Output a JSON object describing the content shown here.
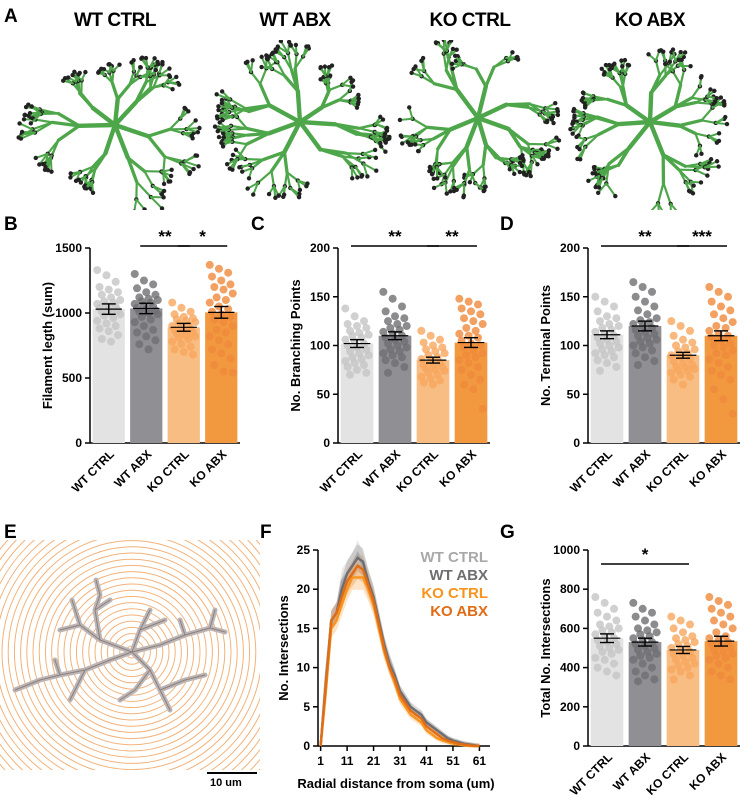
{
  "panels": {
    "A": "A",
    "B": "B",
    "C": "C",
    "D": "D",
    "E": "E",
    "F": "F",
    "G": "G"
  },
  "cell_titles": [
    "WT CTRL",
    "WT ABX",
    "KO CTRL",
    "KO ABX"
  ],
  "scale_bar_label": "10 um",
  "colors": {
    "wt_ctrl": "#e3e3e3",
    "wt_abx": "#8f8f94",
    "ko_ctrl": "#f8bd82",
    "ko_abx": "#f29940",
    "cell_green": "#4ea64a",
    "ring_orange": "#f3b27a"
  },
  "chart_data": [
    {
      "id": "B",
      "type": "bar",
      "categories": [
        "WT CTRL",
        "WT ABX",
        "KO CTRL",
        "KO ABX"
      ],
      "values": [
        1030,
        1035,
        890,
        1005
      ],
      "errors": [
        40,
        40,
        30,
        45
      ],
      "ylabel": "Filament legth (sum)",
      "ylim": [
        0,
        1500
      ],
      "yticks": [
        "0",
        "500",
        "1000",
        "1500"
      ],
      "significance": [
        {
          "from": 0,
          "to": 2,
          "label": "**"
        },
        {
          "from": 1,
          "to": 2,
          "label": "**"
        },
        {
          "from": 2,
          "to": 3,
          "label": "*"
        }
      ],
      "points": [
        [
          1330,
          1290,
          1240,
          1200,
          1180,
          1160,
          1140,
          1120,
          1100,
          1090,
          1080,
          1070,
          1060,
          1050,
          1040,
          1030,
          1020,
          1010,
          1000,
          990,
          980,
          960,
          940,
          920,
          900,
          880,
          860,
          830,
          800,
          780
        ],
        [
          1300,
          1250,
          1220,
          1190,
          1160,
          1140,
          1120,
          1110,
          1100,
          1090,
          1080,
          1070,
          1060,
          1050,
          1040,
          1030,
          1020,
          1010,
          1000,
          990,
          970,
          950,
          930,
          900,
          870,
          850,
          820,
          790,
          760,
          720
        ],
        [
          1080,
          1040,
          1010,
          990,
          970,
          960,
          950,
          940,
          930,
          920,
          910,
          900,
          890,
          880,
          870,
          860,
          850,
          840,
          830,
          820,
          810,
          800,
          780,
          760,
          740,
          720,
          700,
          680
        ],
        [
          1370,
          1340,
          1310,
          1280,
          1250,
          1220,
          1200,
          1180,
          1150,
          1120,
          1100,
          1080,
          1050,
          1030,
          1010,
          990,
          970,
          950,
          930,
          900,
          870,
          850,
          820,
          790,
          760,
          720,
          690,
          650,
          600,
          550,
          540
        ]
      ]
    },
    {
      "id": "C",
      "type": "bar",
      "categories": [
        "WT CTRL",
        "WT ABX",
        "KO CTRL",
        "KO ABX"
      ],
      "values": [
        102,
        110,
        85,
        103
      ],
      "errors": [
        4,
        4,
        3,
        5
      ],
      "ylabel": "No. Branching Points",
      "ylim": [
        0,
        200
      ],
      "yticks": [
        "0",
        "50",
        "100",
        "150",
        "200"
      ],
      "significance": [
        {
          "from": 0,
          "to": 2,
          "label": "**"
        },
        {
          "from": 2,
          "to": 3,
          "label": "**"
        }
      ],
      "points": [
        [
          138,
          130,
          125,
          122,
          120,
          118,
          115,
          113,
          111,
          110,
          108,
          106,
          104,
          102,
          100,
          98,
          96,
          94,
          92,
          90,
          88,
          86,
          84,
          82,
          80,
          78,
          75,
          72,
          70
        ],
        [
          155,
          148,
          140,
          135,
          130,
          128,
          125,
          122,
          120,
          118,
          116,
          114,
          112,
          110,
          108,
          106,
          104,
          102,
          100,
          98,
          96,
          94,
          92,
          90,
          88,
          85,
          82,
          78,
          72
        ],
        [
          115,
          110,
          106,
          103,
          100,
          98,
          96,
          94,
          92,
          90,
          88,
          86,
          84,
          82,
          80,
          79,
          78,
          76,
          75,
          74,
          72,
          70,
          68,
          66,
          64,
          62,
          60
        ],
        [
          148,
          145,
          142,
          138,
          135,
          132,
          128,
          125,
          122,
          118,
          115,
          112,
          110,
          108,
          105,
          102,
          100,
          98,
          95,
          92,
          90,
          88,
          85,
          82,
          78,
          75,
          70,
          65,
          60,
          55,
          35
        ]
      ]
    },
    {
      "id": "D",
      "type": "bar",
      "categories": [
        "WT CTRL",
        "WT ABX",
        "KO CTRL",
        "KO ABX"
      ],
      "values": [
        111,
        120,
        90,
        110
      ],
      "errors": [
        4,
        5,
        3,
        5
      ],
      "ylabel": "No. Terminal Points",
      "ylim": [
        0,
        200
      ],
      "yticks": [
        "0",
        "50",
        "100",
        "150",
        "200"
      ],
      "significance": [
        {
          "from": 0,
          "to": 2,
          "label": "**"
        },
        {
          "from": 2,
          "to": 3,
          "label": "***"
        }
      ],
      "points": [
        [
          150,
          145,
          140,
          135,
          130,
          128,
          125,
          122,
          120,
          118,
          116,
          114,
          112,
          110,
          108,
          106,
          104,
          102,
          100,
          98,
          96,
          94,
          92,
          90,
          88,
          85,
          82,
          78,
          74
        ],
        [
          165,
          160,
          155,
          150,
          145,
          140,
          136,
          132,
          128,
          126,
          124,
          122,
          120,
          118,
          116,
          114,
          112,
          110,
          108,
          106,
          104,
          102,
          100,
          98,
          95,
          92,
          88,
          84,
          80
        ],
        [
          125,
          120,
          115,
          110,
          106,
          103,
          100,
          98,
          96,
          94,
          92,
          90,
          88,
          86,
          84,
          82,
          80,
          79,
          78,
          76,
          75,
          74,
          72,
          70,
          68,
          65,
          60
        ],
        [
          160,
          155,
          150,
          145,
          140,
          136,
          132,
          128,
          124,
          120,
          118,
          115,
          112,
          110,
          108,
          105,
          102,
          100,
          98,
          95,
          92,
          90,
          86,
          82,
          78,
          74,
          70,
          65,
          55,
          45,
          30
        ]
      ]
    },
    {
      "id": "F",
      "type": "line",
      "xlabel": "Radial distance from soma (um)",
      "ylabel": "No. Intersections",
      "xlim": [
        0,
        65
      ],
      "ylim": [
        0,
        25
      ],
      "xticks": [
        "1",
        "11",
        "21",
        "31",
        "41",
        "51",
        "61"
      ],
      "yticks": [
        "0",
        "5",
        "10",
        "15",
        "20",
        "25"
      ],
      "x": [
        1,
        3,
        5,
        7,
        9,
        11,
        13,
        15,
        17,
        19,
        21,
        23,
        25,
        27,
        29,
        31,
        33,
        35,
        37,
        39,
        41,
        43,
        45,
        47,
        49,
        51,
        53,
        55,
        57,
        59,
        61
      ],
      "series": [
        {
          "name": "WT CTRL",
          "color": "#a9a9a9",
          "values": [
            0,
            9,
            16,
            17,
            21,
            22,
            23,
            24.5,
            23,
            21,
            19,
            16,
            13,
            11,
            9,
            7,
            6,
            5,
            4,
            4,
            3,
            2.5,
            2,
            1.5,
            1,
            0.7,
            0.5,
            0.3,
            0.2,
            0.1,
            0
          ]
        },
        {
          "name": "WT ABX",
          "color": "#6e6e72",
          "values": [
            0,
            8,
            16,
            17,
            20,
            22,
            23,
            24,
            23.5,
            21,
            19,
            16,
            13,
            10.5,
            9,
            7,
            6,
            5,
            4.5,
            4,
            3,
            2.5,
            2,
            1.5,
            1,
            0.7,
            0.5,
            0.3,
            0.2,
            0.1,
            0
          ]
        },
        {
          "name": "KO CTRL",
          "color": "#f7941d",
          "values": [
            0,
            7,
            15,
            16,
            18,
            20,
            21.5,
            21.5,
            21.5,
            20,
            18,
            15,
            12,
            10,
            8,
            6,
            5,
            4,
            3.5,
            3,
            2,
            1.5,
            1,
            0.7,
            0.5,
            0.3,
            0.2,
            0.1,
            0,
            0,
            0
          ]
        },
        {
          "name": "KO ABX",
          "color": "#e06c16",
          "values": [
            0,
            8,
            16,
            17,
            19,
            21,
            22,
            23,
            22.5,
            20.5,
            18.5,
            15.5,
            12.5,
            10,
            8.5,
            6.5,
            5.5,
            4.5,
            4,
            3.5,
            2.5,
            2,
            1.5,
            1,
            0.7,
            0.5,
            0.3,
            0.2,
            0.1,
            0,
            0
          ]
        }
      ]
    },
    {
      "id": "G",
      "type": "bar",
      "categories": [
        "WT CTRL",
        "WT ABX",
        "KO CTRL",
        "KO ABX"
      ],
      "values": [
        550,
        530,
        490,
        535
      ],
      "errors": [
        22,
        20,
        18,
        25
      ],
      "ylabel": "Total No. Intersections",
      "ylim": [
        0,
        1000
      ],
      "yticks": [
        "0",
        "200",
        "400",
        "600",
        "800",
        "1000"
      ],
      "significance": [
        {
          "from": 0,
          "to": 2,
          "label": "*"
        }
      ],
      "points": [
        [
          760,
          730,
          700,
          680,
          660,
          640,
          620,
          610,
          600,
          590,
          580,
          570,
          560,
          550,
          540,
          530,
          520,
          510,
          500,
          490,
          480,
          470,
          450,
          440,
          420,
          400,
          380,
          360
        ],
        [
          730,
          700,
          680,
          660,
          640,
          620,
          600,
          590,
          580,
          570,
          560,
          550,
          540,
          530,
          520,
          510,
          500,
          490,
          480,
          470,
          460,
          450,
          440,
          420,
          400,
          380,
          360,
          340,
          330
        ],
        [
          660,
          640,
          620,
          600,
          580,
          560,
          550,
          540,
          530,
          520,
          510,
          500,
          490,
          480,
          470,
          460,
          450,
          440,
          430,
          420,
          410,
          400,
          390,
          380,
          360,
          340
        ],
        [
          760,
          740,
          720,
          700,
          680,
          660,
          640,
          620,
          600,
          580,
          560,
          550,
          540,
          530,
          520,
          510,
          500,
          490,
          480,
          470,
          460,
          450,
          440,
          420,
          400,
          380,
          360,
          340
        ]
      ]
    }
  ]
}
